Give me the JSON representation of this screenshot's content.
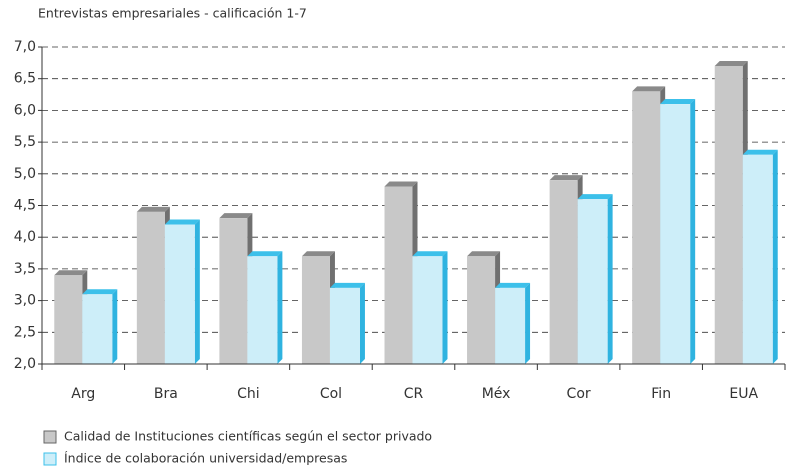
{
  "chart_data": {
    "type": "bar",
    "subtitle": "Entrevistas empresariales -   calificación 1-7",
    "categories": [
      "Arg",
      "Bra",
      "Chi",
      "Col",
      "CR",
      "Méx",
      "Cor",
      "Fin",
      "EUA"
    ],
    "series": [
      {
        "name": "Calidad de Instituciones científicas según el sector privado",
        "color": "#c8c8c8",
        "values": [
          3.4,
          4.4,
          4.3,
          3.7,
          4.8,
          3.7,
          4.9,
          6.3,
          6.7
        ]
      },
      {
        "name": "Índice de colaboración universidad/empresas",
        "color": "#cdeef9",
        "values": [
          3.1,
          4.2,
          3.7,
          3.2,
          3.7,
          3.2,
          4.6,
          6.1,
          5.3
        ]
      }
    ],
    "ylim": [
      2,
      7
    ],
    "yticks": [
      {
        "value": 2,
        "label": "2,0"
      },
      {
        "value": 2.5,
        "label": "2,5"
      },
      {
        "value": 3,
        "label": "3,0"
      },
      {
        "value": 3.5,
        "label": "3,5"
      },
      {
        "value": 4,
        "label": "4,0"
      },
      {
        "value": 4.5,
        "label": "4,5"
      },
      {
        "value": 5,
        "label": "5,0"
      },
      {
        "value": 5.5,
        "label": "5,5"
      },
      {
        "value": 6,
        "label": "6,0"
      },
      {
        "value": 6.5,
        "label": "6,5"
      },
      {
        "value": 7,
        "label": "7,0"
      }
    ],
    "grid": true
  }
}
